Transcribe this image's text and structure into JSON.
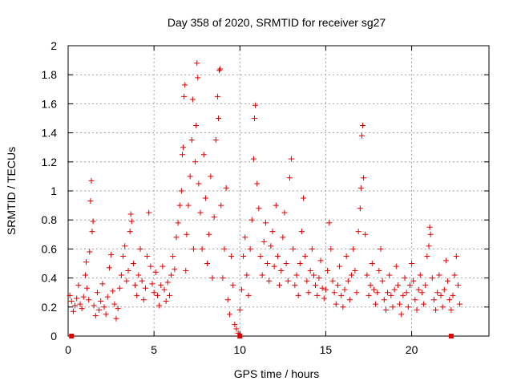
{
  "chart_data": {
    "type": "scatter",
    "title": "Day 358 of 2020, SRMTID for receiver sg27",
    "xlabel": "GPS time / hours",
    "ylabel": "SRMTID / TECUs",
    "xlim": [
      0,
      24.5
    ],
    "ylim": [
      0,
      2
    ],
    "xticks": [
      0,
      5,
      10,
      15,
      20
    ],
    "yticks": [
      0,
      0.2,
      0.4,
      0.6,
      0.8,
      1,
      1.2,
      1.4,
      1.6,
      1.8,
      2
    ],
    "xtick_labels": [
      "0",
      "5",
      "10",
      "15",
      "20"
    ],
    "ytick_labels": [
      "0",
      "0.2",
      "0.4",
      "0.6",
      "0.8",
      "1",
      "1.2",
      "1.4",
      "1.6",
      "1.8",
      "2"
    ],
    "grid": true,
    "marker": "plus",
    "color": "#e00000",
    "series": [
      {
        "name": "SRMTID",
        "points": [
          [
            0.1,
            0.28
          ],
          [
            0.2,
            0.24
          ],
          [
            0.3,
            0.17
          ],
          [
            0.4,
            0.21
          ],
          [
            0.5,
            0.26
          ],
          [
            0.6,
            0.35
          ],
          [
            0.7,
            0.22
          ],
          [
            0.8,
            0.19
          ],
          [
            0.9,
            0.27
          ],
          [
            1.0,
            0.42
          ],
          [
            1.05,
            0.51
          ],
          [
            1.1,
            0.33
          ],
          [
            1.2,
            0.25
          ],
          [
            1.25,
            0.58
          ],
          [
            1.3,
            0.93
          ],
          [
            1.35,
            1.07
          ],
          [
            1.4,
            0.72
          ],
          [
            1.45,
            0.79
          ],
          [
            1.5,
            0.21
          ],
          [
            1.6,
            0.14
          ],
          [
            1.7,
            0.3
          ],
          [
            1.8,
            0.18
          ],
          [
            1.9,
            0.24
          ],
          [
            2.0,
            0.36
          ],
          [
            2.1,
            0.2
          ],
          [
            2.2,
            0.15
          ],
          [
            2.3,
            0.27
          ],
          [
            2.4,
            0.47
          ],
          [
            2.5,
            0.56
          ],
          [
            2.6,
            0.31
          ],
          [
            2.7,
            0.22
          ],
          [
            2.8,
            0.12
          ],
          [
            2.9,
            0.19
          ],
          [
            3.0,
            0.33
          ],
          [
            3.1,
            0.42
          ],
          [
            3.2,
            0.55
          ],
          [
            3.3,
            0.62
          ],
          [
            3.4,
            0.38
          ],
          [
            3.5,
            0.45
          ],
          [
            3.6,
            0.72
          ],
          [
            3.65,
            0.84
          ],
          [
            3.7,
            0.79
          ],
          [
            3.8,
            0.5
          ],
          [
            3.9,
            0.35
          ],
          [
            4.0,
            0.28
          ],
          [
            4.1,
            0.42
          ],
          [
            4.2,
            0.6
          ],
          [
            4.3,
            0.38
          ],
          [
            4.4,
            0.25
          ],
          [
            4.5,
            0.33
          ],
          [
            4.6,
            0.55
          ],
          [
            4.7,
            0.85
          ],
          [
            4.8,
            0.48
          ],
          [
            4.9,
            0.36
          ],
          [
            5.0,
            0.3
          ],
          [
            5.1,
            0.44
          ],
          [
            5.2,
            0.28
          ],
          [
            5.3,
            0.21
          ],
          [
            5.4,
            0.35
          ],
          [
            5.5,
            0.48
          ],
          [
            5.6,
            0.32
          ],
          [
            5.7,
            0.24
          ],
          [
            5.8,
            0.37
          ],
          [
            5.9,
            0.28
          ],
          [
            6.0,
            0.42
          ],
          [
            6.1,
            0.55
          ],
          [
            6.2,
            0.46
          ],
          [
            6.3,
            0.68
          ],
          [
            6.4,
            0.78
          ],
          [
            6.5,
            0.9
          ],
          [
            6.6,
            1.0
          ],
          [
            6.65,
            1.25
          ],
          [
            6.7,
            1.3
          ],
          [
            6.75,
            1.65
          ],
          [
            6.8,
            1.73
          ],
          [
            6.85,
            0.45
          ],
          [
            6.9,
            0.7
          ],
          [
            7.0,
            0.9
          ],
          [
            7.1,
            1.1
          ],
          [
            7.2,
            1.35
          ],
          [
            7.25,
            1.63
          ],
          [
            7.3,
            0.6
          ],
          [
            7.4,
            1.2
          ],
          [
            7.45,
            1.45
          ],
          [
            7.5,
            1.88
          ],
          [
            7.55,
            1.78
          ],
          [
            7.6,
            1.05
          ],
          [
            7.7,
            0.85
          ],
          [
            7.8,
            0.6
          ],
          [
            7.9,
            1.25
          ],
          [
            8.0,
            0.95
          ],
          [
            8.1,
            0.5
          ],
          [
            8.2,
            0.7
          ],
          [
            8.3,
            1.1
          ],
          [
            8.4,
            0.4
          ],
          [
            8.5,
            0.82
          ],
          [
            8.6,
            1.35
          ],
          [
            8.7,
            1.65
          ],
          [
            8.75,
            1.5
          ],
          [
            8.8,
            1.83
          ],
          [
            8.85,
            1.84
          ],
          [
            8.9,
            0.9
          ],
          [
            9.0,
            0.4
          ],
          [
            9.1,
            0.6
          ],
          [
            9.2,
            1.02
          ],
          [
            9.3,
            0.25
          ],
          [
            9.4,
            0.15
          ],
          [
            9.5,
            0.55
          ],
          [
            9.6,
            0.35
          ],
          [
            9.7,
            0.08
          ],
          [
            9.8,
            0.05
          ],
          [
            9.9,
            0.02
          ],
          [
            10.0,
            0.18
          ],
          [
            10.1,
            0.32
          ],
          [
            10.2,
            0.55
          ],
          [
            10.3,
            0.68
          ],
          [
            10.4,
            0.42
          ],
          [
            10.5,
            0.28
          ],
          [
            10.6,
            0.6
          ],
          [
            10.7,
            0.8
          ],
          [
            10.8,
            1.22
          ],
          [
            10.85,
            1.5
          ],
          [
            10.9,
            1.59
          ],
          [
            11.0,
            1.05
          ],
          [
            11.1,
            0.88
          ],
          [
            11.2,
            0.55
          ],
          [
            11.3,
            0.42
          ],
          [
            11.4,
            0.65
          ],
          [
            11.5,
            0.78
          ],
          [
            11.6,
            0.5
          ],
          [
            11.7,
            0.38
          ],
          [
            11.8,
            0.62
          ],
          [
            11.9,
            0.72
          ],
          [
            12.0,
            0.48
          ],
          [
            12.1,
            0.9
          ],
          [
            12.2,
            0.55
          ],
          [
            12.3,
            0.35
          ],
          [
            12.4,
            0.45
          ],
          [
            12.5,
            0.68
          ],
          [
            12.6,
            0.85
          ],
          [
            12.7,
            0.5
          ],
          [
            12.8,
            0.38
          ],
          [
            12.9,
            1.09
          ],
          [
            13.0,
            1.22
          ],
          [
            13.1,
            0.6
          ],
          [
            13.2,
            0.35
          ],
          [
            13.3,
            0.42
          ],
          [
            13.4,
            0.28
          ],
          [
            13.5,
            0.5
          ],
          [
            13.6,
            0.72
          ],
          [
            13.7,
            0.95
          ],
          [
            13.8,
            0.55
          ],
          [
            13.9,
            0.38
          ],
          [
            14.0,
            0.3
          ],
          [
            14.1,
            0.45
          ],
          [
            14.2,
            0.6
          ],
          [
            14.3,
            0.42
          ],
          [
            14.4,
            0.35
          ],
          [
            14.5,
            0.28
          ],
          [
            14.6,
            0.4
          ],
          [
            14.7,
            0.52
          ],
          [
            14.8,
            0.33
          ],
          [
            14.9,
            0.26
          ],
          [
            15.0,
            0.32
          ],
          [
            15.1,
            0.45
          ],
          [
            15.2,
            0.78
          ],
          [
            15.3,
            0.6
          ],
          [
            15.4,
            0.38
          ],
          [
            15.5,
            0.3
          ],
          [
            15.6,
            0.22
          ],
          [
            15.7,
            0.35
          ],
          [
            15.8,
            0.48
          ],
          [
            15.9,
            0.28
          ],
          [
            16.0,
            0.2
          ],
          [
            16.1,
            0.32
          ],
          [
            16.2,
            0.55
          ],
          [
            16.3,
            0.38
          ],
          [
            16.4,
            0.25
          ],
          [
            16.5,
            0.42
          ],
          [
            16.6,
            0.6
          ],
          [
            16.7,
            0.45
          ],
          [
            16.8,
            0.3
          ],
          [
            16.9,
            0.72
          ],
          [
            17.0,
            0.88
          ],
          [
            17.05,
            1.02
          ],
          [
            17.1,
            1.38
          ],
          [
            17.15,
            1.45
          ],
          [
            17.2,
            1.09
          ],
          [
            17.3,
            0.7
          ],
          [
            17.4,
            0.42
          ],
          [
            17.5,
            0.28
          ],
          [
            17.6,
            0.35
          ],
          [
            17.7,
            0.5
          ],
          [
            17.8,
            0.32
          ],
          [
            17.9,
            0.22
          ],
          [
            18.0,
            0.3
          ],
          [
            18.1,
            0.45
          ],
          [
            18.2,
            0.6
          ],
          [
            18.3,
            0.38
          ],
          [
            18.4,
            0.25
          ],
          [
            18.5,
            0.18
          ],
          [
            18.6,
            0.3
          ],
          [
            18.7,
            0.42
          ],
          [
            18.8,
            0.28
          ],
          [
            18.9,
            0.2
          ],
          [
            19.0,
            0.32
          ],
          [
            19.1,
            0.48
          ],
          [
            19.2,
            0.35
          ],
          [
            19.3,
            0.22
          ],
          [
            19.4,
            0.15
          ],
          [
            19.5,
            0.28
          ],
          [
            19.6,
            0.4
          ],
          [
            19.7,
            0.3
          ],
          [
            19.8,
            0.2
          ],
          [
            19.9,
            0.35
          ],
          [
            20.0,
            0.5
          ],
          [
            20.1,
            0.38
          ],
          [
            20.2,
            0.25
          ],
          [
            20.3,
            0.18
          ],
          [
            20.4,
            0.32
          ],
          [
            20.5,
            0.42
          ],
          [
            20.6,
            0.3
          ],
          [
            20.7,
            0.22
          ],
          [
            20.8,
            0.35
          ],
          [
            20.9,
            0.55
          ],
          [
            21.0,
            0.62
          ],
          [
            21.05,
            0.75
          ],
          [
            21.1,
            0.7
          ],
          [
            21.2,
            0.4
          ],
          [
            21.3,
            0.25
          ],
          [
            21.4,
            0.18
          ],
          [
            21.5,
            0.3
          ],
          [
            21.6,
            0.42
          ],
          [
            21.7,
            0.28
          ],
          [
            21.8,
            0.2
          ],
          [
            21.9,
            0.32
          ],
          [
            22.0,
            0.52
          ],
          [
            22.1,
            0.38
          ],
          [
            22.2,
            0.25
          ],
          [
            22.3,
            0.18
          ],
          [
            22.4,
            0.28
          ],
          [
            22.5,
            0.42
          ],
          [
            22.6,
            0.55
          ],
          [
            22.7,
            0.35
          ],
          [
            22.8,
            0.22
          ]
        ]
      }
    ],
    "edge_markers": [
      0.2,
      10.0,
      22.3
    ]
  }
}
